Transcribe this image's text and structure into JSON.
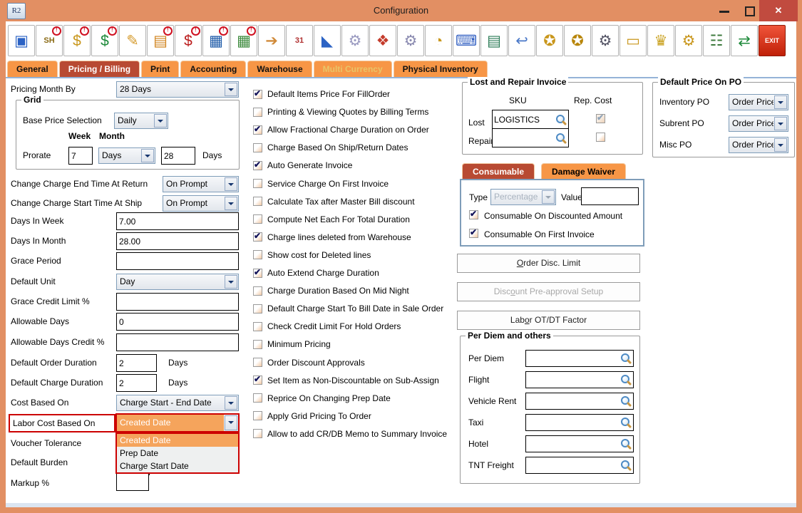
{
  "window": {
    "title": "Configuration",
    "app_badge": "R2"
  },
  "colors": {
    "titlebar": "#E28F63",
    "tab_orange": "#F79646",
    "active_tab": "#B84A32",
    "close_red": "#C14B3F",
    "highlight_red": "#CC0000",
    "highlight_orange": "#F5A45C"
  },
  "toolbar": {
    "icons": [
      {
        "name": "save",
        "glyph": "▣",
        "color": "#2b62c4",
        "badge": false
      },
      {
        "name": "ship-order",
        "glyph": "SH",
        "color": "#8a6a14",
        "badge": true
      },
      {
        "name": "cash-coins",
        "glyph": "$",
        "color": "#c9971d",
        "badge": true
      },
      {
        "name": "invoice",
        "glyph": "$",
        "color": "#1d8a3a",
        "badge": true
      },
      {
        "name": "edit-order",
        "glyph": "✎",
        "color": "#d59a2b",
        "badge": false
      },
      {
        "name": "order-form",
        "glyph": "▤",
        "color": "#d0821a",
        "badge": true
      },
      {
        "name": "payment-book",
        "glyph": "$",
        "color": "#bb1d1d",
        "badge": true
      },
      {
        "name": "rate-grid",
        "glyph": "▦",
        "color": "#1d5aa8",
        "badge": true
      },
      {
        "name": "spreadsheet",
        "glyph": "▦",
        "color": "#3d8a3d",
        "badge": true
      },
      {
        "name": "login-lock",
        "glyph": "➔",
        "color": "#d08a3a",
        "badge": false
      },
      {
        "name": "calendar",
        "glyph": "31",
        "color": "#b03030",
        "badge": false
      },
      {
        "name": "ruler",
        "glyph": "◣",
        "color": "#2b62c4",
        "badge": false
      },
      {
        "name": "system-gears",
        "glyph": "⚙",
        "color": "#9a9ac0",
        "badge": false
      },
      {
        "name": "color-cubes",
        "glyph": "❖",
        "color": "#c43b2b",
        "badge": false
      },
      {
        "name": "tag-gear",
        "glyph": "⚙",
        "color": "#8a8ab0",
        "badge": false
      },
      {
        "name": "folder-clock",
        "glyph": "◔",
        "color": "#c9971d",
        "badge": false
      },
      {
        "name": "keyboard-edit",
        "glyph": "⌨",
        "color": "#3a66c4",
        "badge": false
      },
      {
        "name": "doc-cube",
        "glyph": "▤",
        "color": "#2a7a55",
        "badge": false
      },
      {
        "name": "doc-return",
        "glyph": "↩",
        "color": "#4a78c8",
        "badge": false
      },
      {
        "name": "shield-search",
        "glyph": "✪",
        "color": "#c9971d",
        "badge": false
      },
      {
        "name": "shield-user",
        "glyph": "✪",
        "color": "#b8860b",
        "badge": false
      },
      {
        "name": "scanner-gear",
        "glyph": "⚙",
        "color": "#555566",
        "badge": false
      },
      {
        "name": "folder-doc",
        "glyph": "▭",
        "color": "#c9971d",
        "badge": false
      },
      {
        "name": "award-statue",
        "glyph": "♛",
        "color": "#c9a01d",
        "badge": false
      },
      {
        "name": "folder-gear",
        "glyph": "⚙",
        "color": "#c9971d",
        "badge": false
      },
      {
        "name": "calc-gear",
        "glyph": "☷",
        "color": "#3d7a3d",
        "badge": false
      },
      {
        "name": "import-export",
        "glyph": "⇄",
        "color": "#1d8a3a",
        "badge": false
      },
      {
        "name": "exit",
        "glyph": "EXIT",
        "color": "#ffffff",
        "badge": false
      }
    ]
  },
  "tabs": [
    {
      "label": "General",
      "state": "normal"
    },
    {
      "label": "Pricing / Billing",
      "state": "active"
    },
    {
      "label": "Print",
      "state": "normal"
    },
    {
      "label": "Accounting",
      "state": "normal"
    },
    {
      "label": "Warehouse",
      "state": "normal"
    },
    {
      "label": "Multi Currency",
      "state": "disabled"
    },
    {
      "label": "Physical Inventory",
      "state": "normal"
    }
  ],
  "left": {
    "pricing_month_by": {
      "label": "Pricing Month By",
      "value": "28 Days"
    },
    "grid": {
      "title": "Grid",
      "base_price_selection": {
        "label": "Base Price Selection",
        "value": "Daily"
      },
      "week_header": "Week",
      "month_header": "Month",
      "prorate_label": "Prorate",
      "week_value": "7",
      "month_unit": "Days",
      "month_value": "28",
      "days_suffix": "Days"
    },
    "change_end": {
      "label": "Change Charge End Time At Return",
      "value": "On Prompt"
    },
    "change_start": {
      "label": "Change Charge Start Time At Ship",
      "value": "On Prompt"
    },
    "days_in_week": {
      "label": "Days In Week",
      "value": "7.00"
    },
    "days_in_month": {
      "label": "Days In Month",
      "value": "28.00"
    },
    "grace_period": {
      "label": "Grace Period",
      "value": ""
    },
    "default_unit": {
      "label": "Default Unit",
      "value": "Day"
    },
    "grace_credit": {
      "label": "Grace Credit Limit %",
      "value": ""
    },
    "allowable_days": {
      "label": "Allowable Days",
      "value": "0"
    },
    "allowable_days_credit": {
      "label": "Allowable Days Credit %",
      "value": ""
    },
    "default_order_duration": {
      "label": "Default Order Duration",
      "value": "2",
      "suffix": "Days"
    },
    "default_charge_duration": {
      "label": "Default Charge Duration",
      "value": "2",
      "suffix": "Days"
    },
    "cost_based_on": {
      "label": "Cost Based On",
      "value": "Charge Start - End Date"
    },
    "labor_cost_based_on": {
      "label": "Labor Cost Based On",
      "value": "Created Date",
      "options": [
        "Created Date",
        "Prep Date",
        "Charge Start Date"
      ],
      "selected_index": 0
    },
    "voucher_tolerance": {
      "label": "Voucher Tolerance"
    },
    "default_burden": {
      "label": "Default Burden",
      "value": ""
    },
    "markup_pct": {
      "label": "Markup %",
      "value": ""
    }
  },
  "checkboxes": [
    {
      "label": "Default Items Price For FillOrder",
      "checked": true
    },
    {
      "label": "Printing & Viewing Quotes by Billing Terms",
      "checked": false
    },
    {
      "label": "Allow Fractional Charge Duration on Order",
      "checked": true
    },
    {
      "label": "Charge Based On Ship/Return Dates",
      "checked": false
    },
    {
      "label": "Auto Generate Invoice",
      "checked": true
    },
    {
      "label": "Service Charge On First Invoice",
      "checked": false
    },
    {
      "label": "Calculate Tax after Master Bill discount",
      "checked": false
    },
    {
      "label": "Compute Net Each For Total Duration",
      "checked": false
    },
    {
      "label": "Charge lines deleted from Warehouse",
      "checked": true
    },
    {
      "label": "Show cost for Deleted lines",
      "checked": false
    },
    {
      "label": "Auto Extend Charge Duration",
      "checked": true
    },
    {
      "label": "Charge Duration Based On Mid Night",
      "checked": false
    },
    {
      "label": "Default Charge Start To Bill Date in Sale Order",
      "checked": false
    },
    {
      "label": "Check Credit Limit For Hold Orders",
      "checked": false
    },
    {
      "label": "Minimum Pricing",
      "checked": false
    },
    {
      "label": "Order Discount Approvals",
      "checked": false
    },
    {
      "label": "Set Item as Non-Discountable on Sub-Assign",
      "checked": true
    },
    {
      "label": "Reprice On Changing Prep Date",
      "checked": false
    },
    {
      "label": "Apply Grid Pricing To Order",
      "checked": false
    },
    {
      "label": "Allow to add CR/DB Memo to Summary Invoice",
      "checked": false
    }
  ],
  "lost_repair": {
    "title": "Lost and Repair Invoice",
    "col_sku": "SKU",
    "col_rep_cost": "Rep. Cost",
    "lost": {
      "label": "Lost",
      "value": "LOGISTICS",
      "rep_checked": true
    },
    "repair": {
      "label": "Repair",
      "value": "",
      "rep_checked": false
    }
  },
  "po": {
    "title": "Default Price On PO",
    "rows": [
      {
        "label": "Inventory PO",
        "value": "Order Price"
      },
      {
        "label": "Subrent PO",
        "value": "Order Price"
      },
      {
        "label": "Misc PO",
        "value": "Order Price"
      }
    ]
  },
  "consumable": {
    "tabs": [
      {
        "label": "Consumable",
        "state": "active"
      },
      {
        "label": "Damage Waiver",
        "state": "normal"
      }
    ],
    "type_label": "Type",
    "type_value": "Percentage",
    "value_label": "Value",
    "value_text": "",
    "checks": [
      {
        "label": "Consumable On Discounted Amount",
        "checked": true
      },
      {
        "label": "Consumable On First Invoice",
        "checked": true
      }
    ]
  },
  "action_buttons": [
    {
      "pre": "",
      "u": "O",
      "post": "rder Disc. Limit",
      "disabled": false
    },
    {
      "pre": "Disc",
      "u": "o",
      "post": "unt Pre-approval Setup",
      "disabled": true
    },
    {
      "pre": "Lab",
      "u": "o",
      "post": "r OT/DT Factor",
      "disabled": false
    }
  ],
  "per_diem": {
    "title": "Per Diem and others",
    "rows": [
      {
        "label": "Per Diem",
        "value": ""
      },
      {
        "label": "Flight",
        "value": ""
      },
      {
        "label": "Vehicle Rent",
        "value": ""
      },
      {
        "label": "Taxi",
        "value": ""
      },
      {
        "label": "Hotel",
        "value": ""
      },
      {
        "label": "TNT Freight",
        "value": ""
      }
    ]
  }
}
